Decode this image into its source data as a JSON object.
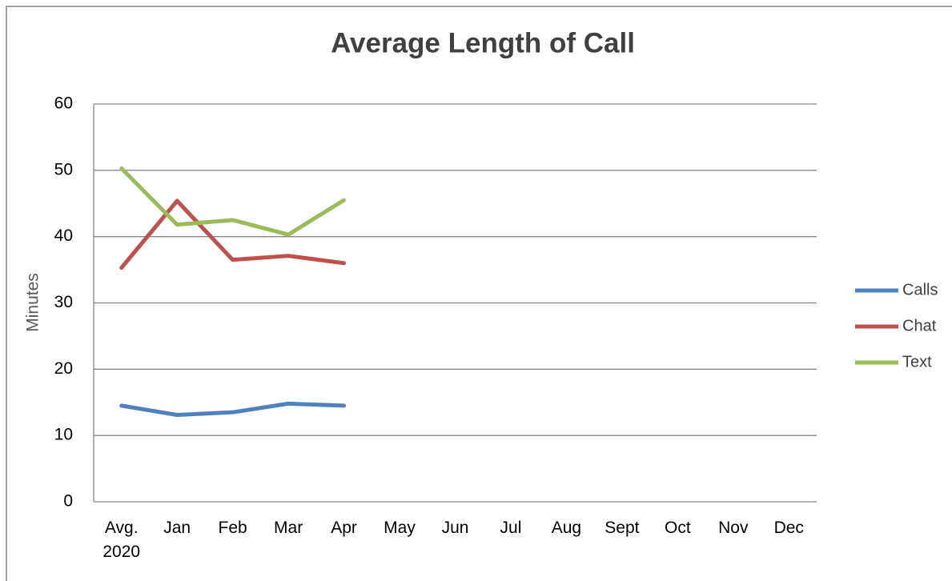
{
  "chart_data": {
    "type": "line",
    "title": "Average Length of Call",
    "y_label": "Minutes",
    "categories": [
      "Avg. 2020",
      "Jan",
      "Feb",
      "Mar",
      "Apr",
      "May",
      "Jun",
      "Jul",
      "Aug",
      "Sept",
      "Oct",
      "Nov",
      "Dec"
    ],
    "series": [
      {
        "name": "Calls",
        "color": "#4f81bd",
        "values": [
          14.5,
          13.1,
          13.5,
          14.8,
          14.5,
          null,
          null,
          null,
          null,
          null,
          null,
          null,
          null
        ]
      },
      {
        "name": "Chat",
        "color": "#c0504d",
        "values": [
          35.3,
          45.4,
          36.5,
          37.1,
          36.0,
          null,
          null,
          null,
          null,
          null,
          null,
          null,
          null
        ]
      },
      {
        "name": "Text",
        "color": "#9bbb59",
        "values": [
          50.3,
          41.8,
          42.5,
          40.3,
          45.5,
          null,
          null,
          null,
          null,
          null,
          null,
          null,
          null
        ]
      }
    ],
    "ylim": [
      0,
      60
    ],
    "yticks": [
      0,
      10,
      20,
      30,
      40,
      50,
      60
    ],
    "grid": true,
    "legend": "right"
  }
}
